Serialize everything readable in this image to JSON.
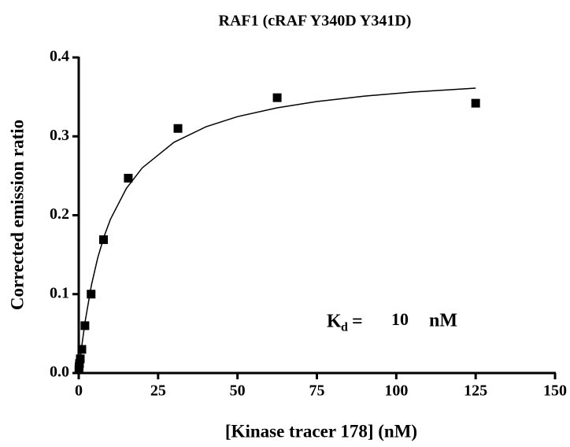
{
  "chart_data": {
    "type": "scatter",
    "title": "RAF1 (cRAF Y340D Y341D)",
    "x_label": "[Kinase tracer 178] (nM)",
    "y_label": "Corrected emission ratio",
    "color": "#000000",
    "x": [
      0.06,
      0.12,
      0.24,
      0.49,
      0.98,
      1.95,
      3.9,
      7.8,
      15.6,
      31.25,
      62.5,
      125
    ],
    "values": [
      0.004,
      0.008,
      0.012,
      0.018,
      0.03,
      0.06,
      0.1,
      0.169,
      0.247,
      0.31,
      0.349,
      0.342
    ],
    "curve": {
      "x": [
        0,
        1,
        2,
        4,
        6,
        8,
        10,
        15,
        20,
        30,
        40,
        50,
        62.5,
        75,
        90,
        105,
        125
      ],
      "values": [
        0,
        0.0355,
        0.065,
        0.1114,
        0.1463,
        0.1733,
        0.195,
        0.234,
        0.26,
        0.2925,
        0.312,
        0.325,
        0.3362,
        0.3441,
        0.351,
        0.3561,
        0.3611
      ]
    },
    "xlim": [
      0,
      150
    ],
    "xticks": [
      0,
      25,
      50,
      75,
      100,
      125,
      150
    ],
    "ylim": [
      0,
      0.4
    ],
    "yticks": [
      {
        "value": 0,
        "label": "0.0"
      },
      0.1,
      0.2,
      0.3,
      0.4
    ],
    "annotation": {
      "symbol": "K",
      "subscript": "d",
      "equals": "=",
      "value": 10,
      "unit": "nM"
    }
  }
}
